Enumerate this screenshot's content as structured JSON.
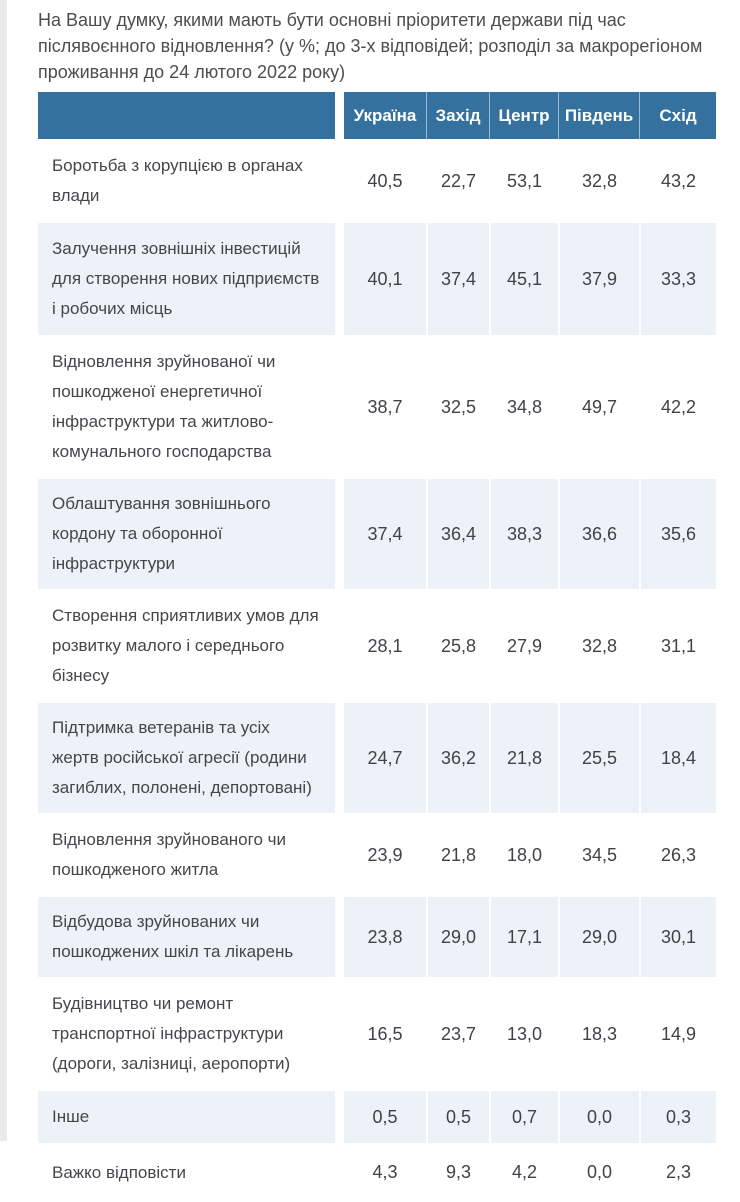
{
  "page_title": "На Вашу думку, якими мають бути основні пріоритети держави під час післявоєнного відновлення? (у %; до 3-х відповідей; розподіл за макрорегіоном проживання до 24 лютого 2022 року)",
  "colors": {
    "header_bg": "#35719f",
    "header_text": "#ffffff",
    "alt_row_bg": "#ecf2f7",
    "body_text": "#42474a"
  },
  "chart_data": {
    "type": "table",
    "title": "На Вашу думку, якими мають бути основні пріоритети держави під час післявоєнного відновлення? (у %; до 3-х відповідей; розподіл за макрорегіоном проживання до 24 лютого 2022 року)",
    "units": "%",
    "columns": [
      "Україна",
      "Захід",
      "Центр",
      "Південь",
      "Схід"
    ],
    "rows": [
      {
        "label": "Боротьба з корупцією в органах влади",
        "values": [
          "40,5",
          "22,7",
          "53,1",
          "32,8",
          "43,2"
        ]
      },
      {
        "label": "Залучення зовнішніх інвестицій для створення нових підприємств і робочих місць",
        "values": [
          "40,1",
          "37,4",
          "45,1",
          "37,9",
          "33,3"
        ]
      },
      {
        "label": "Відновлення зруйнованої чи пошкодженої енергетичної інфраструктури та житлово-комунального господарства",
        "values": [
          "38,7",
          "32,5",
          "34,8",
          "49,7",
          "42,2"
        ]
      },
      {
        "label": "Облаштування зовнішнього кордону та оборонної інфраструктури",
        "values": [
          "37,4",
          "36,4",
          "38,3",
          "36,6",
          "35,6"
        ]
      },
      {
        "label": "Створення сприятливих умов для розвитку малого і середнього бізнесу",
        "values": [
          "28,1",
          "25,8",
          "27,9",
          "32,8",
          "31,1"
        ]
      },
      {
        "label": "Підтримка ветеранів та усіх жертв російської агресії (родини загиблих, полонені, депортовані)",
        "values": [
          "24,7",
          "36,2",
          "21,8",
          "25,5",
          "18,4"
        ]
      },
      {
        "label": "Відновлення зруйнованого чи пошкодженого житла",
        "values": [
          "23,9",
          "21,8",
          "18,0",
          "34,5",
          "26,3"
        ]
      },
      {
        "label": "Відбудова зруйнованих чи пошкоджених шкіл та лікарень",
        "values": [
          "23,8",
          "29,0",
          "17,1",
          "29,0",
          "30,1"
        ]
      },
      {
        "label": "Будівництво чи ремонт транспортної інфраструктури (дороги, залізниці, аеропорти)",
        "values": [
          "16,5",
          "23,7",
          "13,0",
          "18,3",
          "14,9"
        ]
      },
      {
        "label": "Інше",
        "values": [
          "0,5",
          "0,5",
          "0,7",
          "0,0",
          "0,3"
        ]
      },
      {
        "label": "Важко відповісти",
        "values": [
          "4,3",
          "9,3",
          "4,2",
          "0,0",
          "2,3"
        ]
      }
    ]
  }
}
